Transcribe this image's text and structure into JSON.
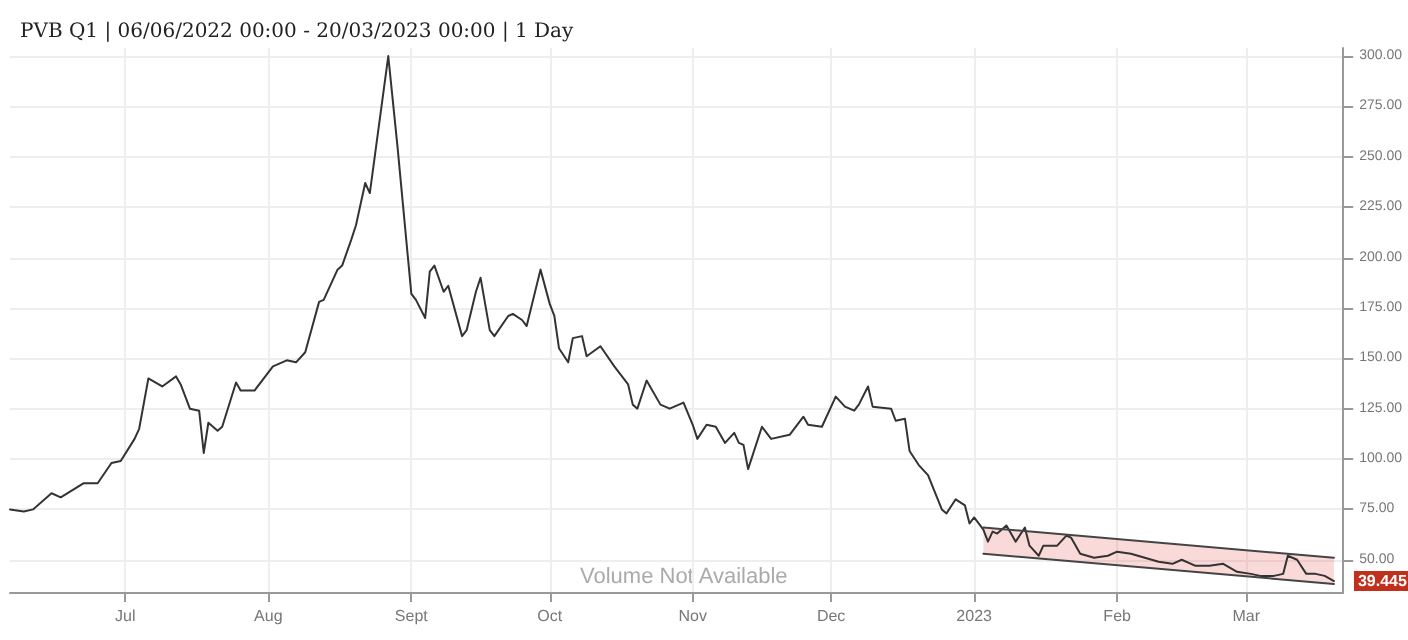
{
  "chart_data": {
    "type": "line",
    "title": "PVB Q1 | 06/06/2022 00:00 - 20/03/2023 00:00 | 1 Day",
    "annotations": [
      "Volume Not Available",
      {
        "text": "39.445",
        "x": "2023-03-20",
        "y": 39.445
      }
    ],
    "x": [
      "2022-06-06",
      "2022-06-09",
      "2022-06-11",
      "2022-06-15",
      "2022-06-17",
      "2022-06-22",
      "2022-06-25",
      "2022-06-28",
      "2022-06-30",
      "2022-07-03",
      "2022-07-04",
      "2022-07-06",
      "2022-07-09",
      "2022-07-12",
      "2022-07-13",
      "2022-07-15",
      "2022-07-17",
      "2022-07-18",
      "2022-07-19",
      "2022-07-21",
      "2022-07-22",
      "2022-07-25",
      "2022-07-26",
      "2022-07-29",
      "2022-08-02",
      "2022-08-05",
      "2022-08-07",
      "2022-08-09",
      "2022-08-12",
      "2022-08-13",
      "2022-08-16",
      "2022-08-17",
      "2022-08-19",
      "2022-08-20",
      "2022-08-22",
      "2022-08-23",
      "2022-08-27",
      "2022-08-29",
      "2022-09-01",
      "2022-09-02",
      "2022-09-04",
      "2022-09-05",
      "2022-09-06",
      "2022-09-08",
      "2022-09-09",
      "2022-09-12",
      "2022-09-13",
      "2022-09-15",
      "2022-09-16",
      "2022-09-18",
      "2022-09-19",
      "2022-09-22",
      "2022-09-23",
      "2022-09-25",
      "2022-09-26",
      "2022-09-29",
      "2022-10-01",
      "2022-10-02",
      "2022-10-03",
      "2022-10-05",
      "2022-10-06",
      "2022-10-08",
      "2022-10-09",
      "2022-10-12",
      "2022-10-15",
      "2022-10-18",
      "2022-10-19",
      "2022-10-20",
      "2022-10-22",
      "2022-10-25",
      "2022-10-27",
      "2022-10-30",
      "2022-11-01",
      "2022-11-02",
      "2022-11-04",
      "2022-11-06",
      "2022-11-08",
      "2022-11-10",
      "2022-11-11",
      "2022-11-12",
      "2022-11-13",
      "2022-11-16",
      "2022-11-18",
      "2022-11-22",
      "2022-11-25",
      "2022-11-26",
      "2022-11-29",
      "2022-12-02",
      "2022-12-04",
      "2022-12-06",
      "2022-12-07",
      "2022-12-09",
      "2022-12-10",
      "2022-12-14",
      "2022-12-15",
      "2022-12-17",
      "2022-12-18",
      "2022-12-20",
      "2022-12-22",
      "2022-12-25",
      "2022-12-26",
      "2022-12-28",
      "2022-12-30",
      "2022-12-31",
      "2023-01-01",
      "2023-01-03",
      "2023-01-04",
      "2023-01-05",
      "2023-01-06",
      "2023-01-08",
      "2023-01-09",
      "2023-01-10",
      "2023-01-12",
      "2023-01-13",
      "2023-01-15",
      "2023-01-16",
      "2023-01-19",
      "2023-01-21",
      "2023-01-22",
      "2023-01-24",
      "2023-01-27",
      "2023-01-30",
      "2023-02-01",
      "2023-02-04",
      "2023-02-07",
      "2023-02-10",
      "2023-02-13",
      "2023-02-15",
      "2023-02-18",
      "2023-02-21",
      "2023-02-24",
      "2023-02-27",
      "2023-03-02",
      "2023-03-04",
      "2023-03-07",
      "2023-03-09",
      "2023-03-10",
      "2023-03-12",
      "2023-03-14",
      "2023-03-16",
      "2023-03-18",
      "2023-03-20"
    ],
    "series": [
      {
        "color": "#333333",
        "values": [
          75,
          74,
          75,
          83,
          81,
          88,
          88,
          98,
          99,
          110,
          115,
          140,
          136,
          141,
          137,
          125,
          124,
          103,
          118,
          114,
          116,
          138,
          134,
          134,
          146,
          149,
          148,
          153,
          178,
          179,
          194,
          196,
          209,
          216,
          237,
          232,
          300,
          255,
          182,
          179,
          170,
          193,
          196,
          183,
          186,
          161,
          164,
          183,
          190,
          164,
          161,
          171,
          172,
          169,
          166,
          194,
          177,
          171,
          155,
          148,
          160,
          161,
          151,
          156,
          146,
          137,
          127,
          125,
          139,
          127,
          125,
          128,
          117,
          110,
          117,
          116,
          108,
          113,
          108,
          107,
          95,
          116,
          110,
          112,
          121,
          117,
          116,
          131,
          126,
          124,
          127,
          136,
          126,
          125,
          119,
          120,
          104,
          97,
          92,
          75,
          73,
          80,
          77,
          68,
          71,
          65,
          59,
          64,
          63,
          67,
          63,
          59,
          66,
          57,
          52,
          57,
          57,
          62,
          61,
          53,
          51,
          52,
          54,
          53,
          51,
          49,
          48,
          50,
          47,
          47,
          48,
          44,
          43,
          42,
          42,
          43,
          52,
          50,
          43,
          43,
          42,
          39.445
        ]
      },
      {
        "type": "line",
        "color": "#444444",
        "x": [
          "2023-01-03",
          "2023-03-20"
        ],
        "values": [
          66,
          51
        ],
        "lower": [
          53,
          38
        ],
        "upper": [
          66,
          51
        ]
      },
      {
        "type": "line",
        "color": "#444444",
        "x": [
          "2023-01-03",
          "2023-03-20"
        ],
        "values": [
          53,
          38
        ]
      }
    ],
    "xlim": [
      "2022-06-06",
      "2023-03-22"
    ],
    "xticks": [
      {
        "value": "2022-07-01",
        "label": "Jul"
      },
      {
        "value": "2022-08-01",
        "label": "Aug"
      },
      {
        "value": "2022-09-01",
        "label": "Sept"
      },
      {
        "value": "2022-10-01",
        "label": "Oct"
      },
      {
        "value": "2022-11-01",
        "label": "Nov"
      },
      {
        "value": "2022-12-01",
        "label": "Dec"
      },
      {
        "value": "2023-01-01",
        "label": "2023"
      },
      {
        "value": "2023-02-01",
        "label": "Feb"
      },
      {
        "value": "2023-03-01",
        "label": "Mar"
      }
    ],
    "ylim": [
      34,
      304
    ],
    "yticks": [
      {
        "value": 50,
        "label": "50.00"
      },
      {
        "value": 75,
        "label": "75.00"
      },
      {
        "value": 100,
        "label": "100.00"
      },
      {
        "value": 125,
        "label": "125.00"
      },
      {
        "value": 150,
        "label": "150.00"
      },
      {
        "value": 175,
        "label": "175.00"
      },
      {
        "value": 200,
        "label": "200.00"
      },
      {
        "value": 225,
        "label": "225.00"
      },
      {
        "value": 250,
        "label": "250.00"
      },
      {
        "value": 275,
        "label": "275.00"
      },
      {
        "value": 300,
        "label": "300.00"
      }
    ],
    "grid": true,
    "marker": "none",
    "line_style": "solid"
  }
}
